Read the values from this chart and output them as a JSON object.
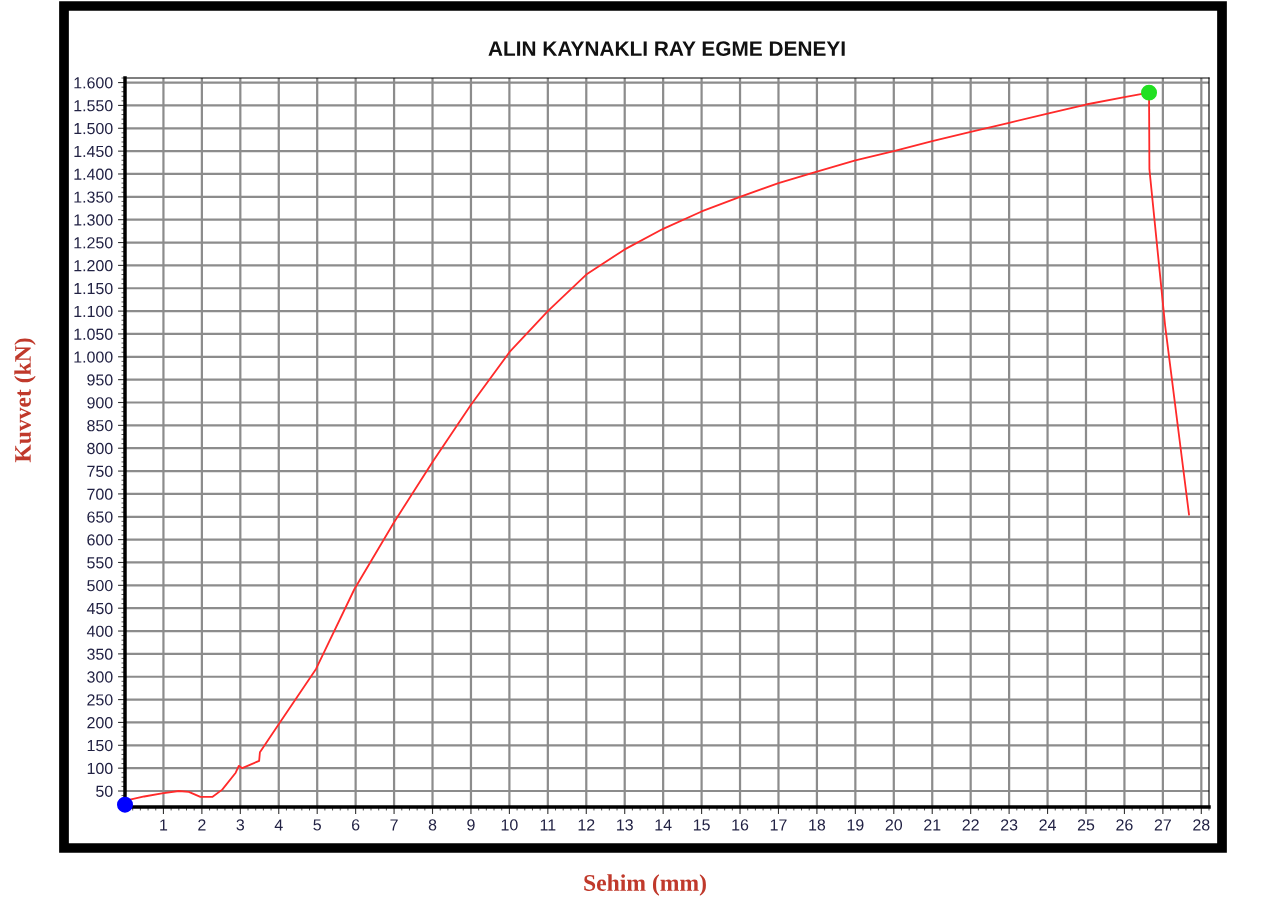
{
  "chart_data": {
    "type": "line",
    "title": "ALIN KAYNAKLI RAY EGME DENEYI",
    "xlabel": "Sehim (mm)",
    "ylabel": "Kuvvet (kN)",
    "series": [
      {
        "color": "#ff2a2a",
        "marker": "none",
        "x": [
          0,
          0.13,
          0.5,
          0.96,
          1.4,
          1.66,
          1.96,
          2.27,
          2.53,
          2.88,
          2.96,
          3.05,
          3.49,
          3.51,
          3.92,
          4.97,
          5.97,
          7,
          8,
          9,
          10,
          11,
          12,
          13,
          14,
          15,
          16,
          17,
          18,
          19,
          20,
          21,
          22,
          23,
          24,
          25,
          26,
          26.64,
          26.65,
          27.06,
          27.68
        ],
        "values": [
          20,
          31,
          38,
          45,
          50,
          48,
          37,
          37,
          53,
          90,
          105,
          100,
          116,
          135,
          186,
          317,
          492,
          638,
          770,
          895,
          1010,
          1100,
          1180,
          1235,
          1280,
          1318,
          1350,
          1380,
          1405,
          1430,
          1450,
          1472,
          1492,
          1512,
          1532,
          1552,
          1568,
          1578,
          1410,
          1067,
          655
        ]
      },
      {
        "type": "scatter",
        "marker": "circle",
        "color": "#0000ff",
        "x": [
          0
        ],
        "values": [
          20
        ]
      },
      {
        "type": "scatter",
        "marker": "circle",
        "color": "#22e022",
        "x": [
          26.64
        ],
        "values": [
          1578
        ]
      }
    ],
    "xlim": [
      0,
      28.2
    ],
    "ylim": [
      15,
      1610
    ],
    "xticks": [
      1,
      2,
      3,
      4,
      5,
      6,
      7,
      8,
      9,
      10,
      11,
      12,
      13,
      14,
      15,
      16,
      17,
      18,
      19,
      20,
      21,
      22,
      23,
      24,
      25,
      26,
      27,
      28
    ],
    "yticks": [
      50,
      100,
      150,
      200,
      250,
      300,
      350,
      400,
      450,
      500,
      550,
      600,
      650,
      700,
      750,
      800,
      850,
      900,
      950,
      {
        "value": 1000,
        "label": "1.000"
      },
      {
        "value": 1050,
        "label": "1.050"
      },
      {
        "value": 1100,
        "label": "1.100"
      },
      {
        "value": 1150,
        "label": "1.150"
      },
      {
        "value": 1200,
        "label": "1.200"
      },
      {
        "value": 1250,
        "label": "1.250"
      },
      {
        "value": 1300,
        "label": "1.300"
      },
      {
        "value": 1350,
        "label": "1.350"
      },
      {
        "value": 1400,
        "label": "1.400"
      },
      {
        "value": 1450,
        "label": "1.450"
      },
      {
        "value": 1500,
        "label": "1.500"
      },
      {
        "value": 1550,
        "label": "1.550"
      },
      {
        "value": 1600,
        "label": "1.600"
      }
    ],
    "grid": true,
    "line_style": "solid",
    "legend": false
  }
}
